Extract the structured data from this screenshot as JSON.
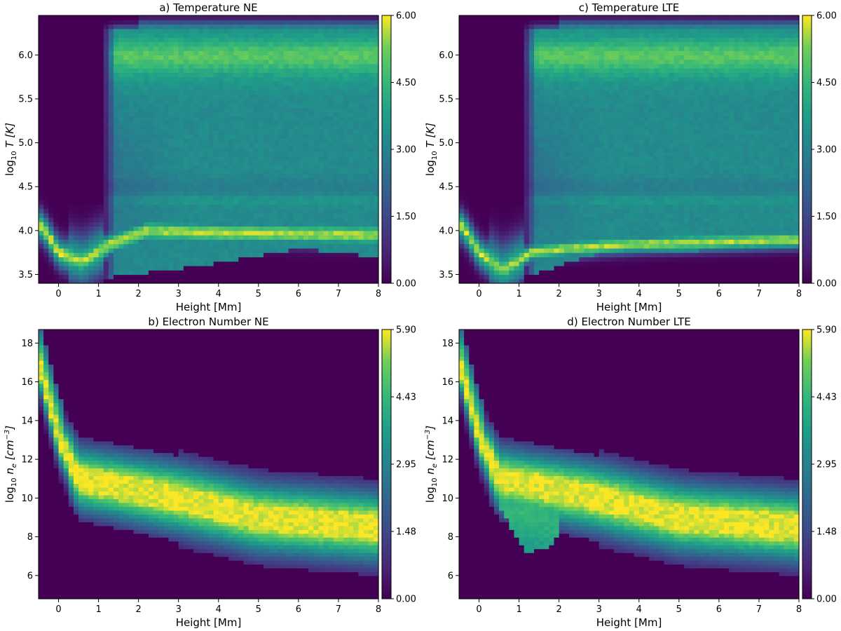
{
  "panels": [
    {
      "id": "a",
      "title": "a) Temperature NE",
      "xlabel": "Height [Mm]",
      "ylabel": "log10 T [K]",
      "ylabel_parts": {
        "pre": "log",
        "sub": "10",
        "var": "T",
        "post": " [K]"
      },
      "colorbar_ticks": [
        "6.00",
        "4.50",
        "3.00",
        "1.50",
        "0.00"
      ]
    },
    {
      "id": "c",
      "title": "c) Temperature LTE",
      "xlabel": "Height [Mm]",
      "ylabel": "log10 T [K]",
      "ylabel_parts": {
        "pre": "log",
        "sub": "10",
        "var": "T",
        "post": " [K]"
      },
      "colorbar_ticks": [
        "6.00",
        "4.50",
        "3.00",
        "1.50",
        "0.00"
      ]
    },
    {
      "id": "b",
      "title": "b) Electron Number NE",
      "xlabel": "Height [Mm]",
      "ylabel": "log10 ne [cm^-3]",
      "ylabel_parts": {
        "pre": "log",
        "sub": "10",
        "var": "n",
        "varsub": "e",
        "post": " [cm",
        "sup": "−3",
        "end": "]"
      },
      "colorbar_ticks": [
        "5.90",
        "4.43",
        "2.95",
        "1.48",
        "0.00"
      ]
    },
    {
      "id": "d",
      "title": "d) Electron Number LTE",
      "xlabel": "Height [Mm]",
      "ylabel": "log10 ne [cm^-3]",
      "ylabel_parts": {
        "pre": "log",
        "sub": "10",
        "var": "n",
        "varsub": "e",
        "post": " [cm",
        "sup": "−3",
        "end": "]"
      },
      "colorbar_ticks": [
        "5.90",
        "4.43",
        "2.95",
        "1.48",
        "0.00"
      ]
    }
  ],
  "chart_data": [
    {
      "type": "heatmap",
      "title": "a) Temperature NE",
      "xlabel": "Height [Mm]",
      "ylabel": "log10 T [K]",
      "xlim": [
        -0.5,
        8
      ],
      "ylim": [
        3.4,
        6.45
      ],
      "xticks": [
        "0",
        "1",
        "2",
        "3",
        "4",
        "5",
        "6",
        "7",
        "8"
      ],
      "yticks": [
        "3.5",
        "4.0",
        "4.5",
        "5.0",
        "5.5",
        "6.0"
      ],
      "colorbar_range": [
        0.0,
        6.0
      ],
      "colormap": "viridis",
      "features": {
        "corona_onset_height": 1.1,
        "corona_upper_band_logT": 5.95,
        "chromosphere_ridge": [
          [
            -0.4,
            4.05
          ],
          [
            0.0,
            3.75
          ],
          [
            0.6,
            3.65
          ],
          [
            1.3,
            3.85
          ],
          [
            2.2,
            4.0
          ],
          [
            4.0,
            3.98
          ],
          [
            8.0,
            3.95
          ]
        ],
        "lower_edge": [
          [
            1.0,
            3.45
          ],
          [
            3.5,
            3.6
          ],
          [
            6.0,
            3.8
          ],
          [
            8.0,
            3.7
          ]
        ]
      }
    },
    {
      "type": "heatmap",
      "title": "c) Temperature LTE",
      "xlabel": "Height [Mm]",
      "ylabel": "log10 T [K]",
      "xlim": [
        -0.5,
        8
      ],
      "ylim": [
        3.4,
        6.45
      ],
      "xticks": [
        "0",
        "1",
        "2",
        "3",
        "4",
        "5",
        "6",
        "7",
        "8"
      ],
      "yticks": [
        "3.5",
        "4.0",
        "4.5",
        "5.0",
        "5.5",
        "6.0"
      ],
      "colorbar_range": [
        0.0,
        6.0
      ],
      "colormap": "viridis",
      "features": {
        "corona_onset_height": 1.1,
        "corona_upper_band_logT": 5.95,
        "chromosphere_ridge": [
          [
            -0.4,
            4.05
          ],
          [
            0.0,
            3.75
          ],
          [
            0.6,
            3.55
          ],
          [
            1.3,
            3.75
          ],
          [
            2.2,
            3.8
          ],
          [
            4.0,
            3.85
          ],
          [
            8.0,
            3.9
          ]
        ],
        "lower_edge": [
          [
            1.0,
            3.45
          ],
          [
            3.0,
            3.75
          ],
          [
            8.0,
            3.8
          ]
        ]
      }
    },
    {
      "type": "heatmap",
      "title": "b) Electron Number NE",
      "xlabel": "Height [Mm]",
      "ylabel": "log10 ne [cm^-3]",
      "xlim": [
        -0.5,
        8
      ],
      "ylim": [
        4.8,
        18.7
      ],
      "xticks": [
        "0",
        "1",
        "2",
        "3",
        "4",
        "5",
        "6",
        "7",
        "8"
      ],
      "yticks": [
        "6",
        "8",
        "10",
        "12",
        "14",
        "16",
        "18"
      ],
      "colorbar_range": [
        0.0,
        5.9
      ],
      "colormap": "viridis",
      "features": {
        "ridge": [
          [
            -0.45,
            16.7
          ],
          [
            0.0,
            13.2
          ],
          [
            0.5,
            11.0
          ],
          [
            1.5,
            10.6
          ],
          [
            3.0,
            10.0
          ],
          [
            5.0,
            9.0
          ],
          [
            8.0,
            8.5
          ]
        ]
      }
    },
    {
      "type": "heatmap",
      "title": "d) Electron Number LTE",
      "xlabel": "Height [Mm]",
      "ylabel": "log10 ne [cm^-3]",
      "xlim": [
        -0.5,
        8
      ],
      "ylim": [
        4.8,
        18.7
      ],
      "xticks": [
        "0",
        "1",
        "2",
        "3",
        "4",
        "5",
        "6",
        "7",
        "8"
      ],
      "yticks": [
        "6",
        "8",
        "10",
        "12",
        "14",
        "16",
        "18"
      ],
      "colorbar_range": [
        0.0,
        5.9
      ],
      "colormap": "viridis",
      "features": {
        "ridge": [
          [
            -0.45,
            16.7
          ],
          [
            0.0,
            13.2
          ],
          [
            0.5,
            11.0
          ],
          [
            1.5,
            10.6
          ],
          [
            3.0,
            10.0
          ],
          [
            5.0,
            9.0
          ],
          [
            8.0,
            8.5
          ]
        ],
        "lower_tongue": [
          [
            0.5,
            9.5
          ],
          [
            1.2,
            7.2
          ],
          [
            1.8,
            7.5
          ],
          [
            2.0,
            8.3
          ]
        ]
      }
    }
  ]
}
